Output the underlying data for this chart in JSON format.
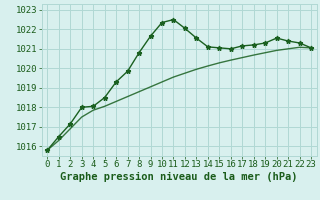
{
  "title": "Graphe pression niveau de la mer (hPa)",
  "background_color": "#d8f0ee",
  "grid_color": "#b0d8d4",
  "line1_color": "#1a6020",
  "line2_color": "#1a6020",
  "x_values": [
    0,
    1,
    2,
    3,
    4,
    5,
    6,
    7,
    8,
    9,
    10,
    11,
    12,
    13,
    14,
    15,
    16,
    17,
    18,
    19,
    20,
    21,
    22,
    23
  ],
  "line1_y": [
    1015.8,
    1016.5,
    1017.15,
    1018.0,
    1018.05,
    1018.5,
    1019.3,
    1019.85,
    1020.8,
    1021.65,
    1022.35,
    1022.5,
    1022.05,
    1021.55,
    1021.1,
    1021.05,
    1021.0,
    1021.15,
    1021.2,
    1021.3,
    1021.55,
    1021.4,
    1021.3,
    1021.05
  ],
  "line2_y": [
    1015.8,
    1016.3,
    1016.9,
    1017.5,
    1017.85,
    1018.05,
    1018.3,
    1018.55,
    1018.8,
    1019.05,
    1019.3,
    1019.55,
    1019.75,
    1019.95,
    1020.12,
    1020.28,
    1020.42,
    1020.55,
    1020.68,
    1020.8,
    1020.92,
    1021.0,
    1021.08,
    1021.05
  ],
  "ylim": [
    1015.5,
    1023.3
  ],
  "yticks": [
    1016,
    1017,
    1018,
    1019,
    1020,
    1021,
    1022,
    1023
  ],
  "xlim": [
    -0.5,
    23.5
  ],
  "xticks": [
    0,
    1,
    2,
    3,
    4,
    5,
    6,
    7,
    8,
    9,
    10,
    11,
    12,
    13,
    14,
    15,
    16,
    17,
    18,
    19,
    20,
    21,
    22,
    23
  ],
  "marker": "*",
  "marker_size": 3.5,
  "linewidth": 1.0,
  "title_fontsize": 7.5,
  "tick_fontsize": 6.5,
  "label_color": "#1a5c1a"
}
